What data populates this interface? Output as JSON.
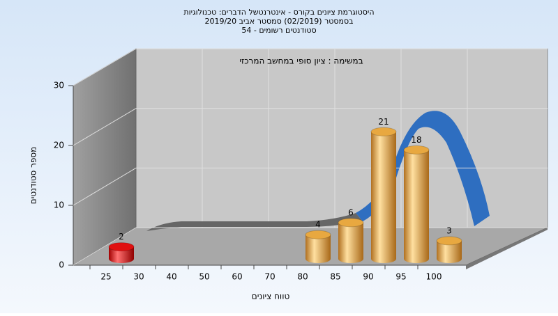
{
  "chart_data": {
    "type": "bar3d",
    "title": [
      "היסטוגרמת ציונים בקורס - אינטרנטשל הדברים: טכנולוגיות",
      "בסמסטר  (02/2019)  סמסטר אביב 2019/20",
      "סטודנטים רשומים - 54"
    ],
    "subtitle": "במשימה : ציון סופי במחשב המרכזי",
    "ylabel": "מספר סטודנטים",
    "xlabel": "טווח ציונים",
    "categories": [
      25,
      30,
      40,
      50,
      60,
      70,
      80,
      85,
      90,
      95,
      100
    ],
    "values": [
      2,
      0,
      0,
      0,
      0,
      0,
      4,
      6,
      21,
      18,
      3
    ],
    "colors": [
      "#e01010",
      "#e8a840",
      "#e8a840",
      "#e8a840",
      "#e8a840",
      "#e8a840",
      "#e8a840",
      "#e8a840",
      "#e8a840",
      "#e8a840",
      "#e8a840"
    ],
    "ylim": [
      0,
      30
    ],
    "yticks": [
      0,
      10,
      20,
      30
    ],
    "grid": true
  }
}
